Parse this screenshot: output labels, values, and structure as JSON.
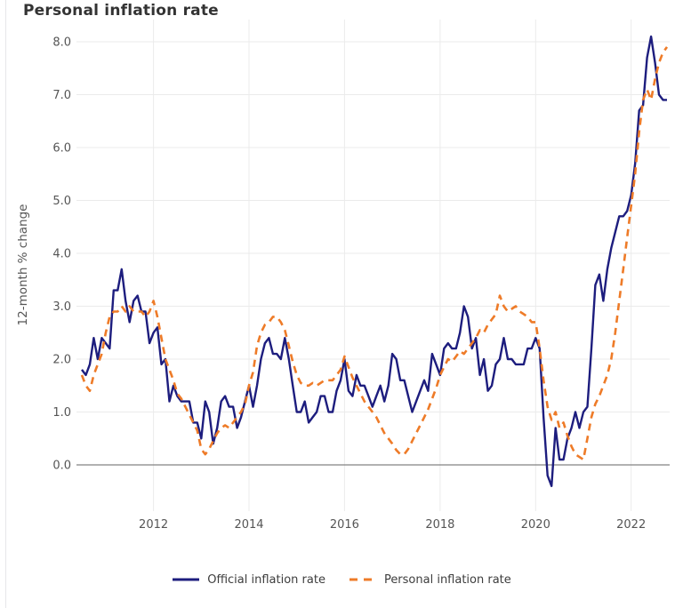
{
  "header": {
    "title": "Personal inflation rate"
  },
  "colors": {
    "official_line": "#1d1d7e",
    "personal_line": "#ee7b28",
    "gridline": "#ebebeb",
    "zero_line": "#828282",
    "tick_text": "#555555",
    "title_text": "#333333",
    "legend_text": "#3d3d3d",
    "background": "#ffffff"
  },
  "chart_data": {
    "type": "line",
    "title": "Personal inflation rate",
    "xlabel": "",
    "ylabel": "12-month % change",
    "frequency": "monthly",
    "x_range": {
      "start": "2010-07",
      "end": "2022-10"
    },
    "x_ticks": [
      2012,
      2014,
      2016,
      2018,
      2020,
      2022
    ],
    "y_ticks": [
      0,
      1,
      2,
      3,
      4,
      5,
      6,
      7,
      8
    ],
    "ylim": [
      -0.5,
      8.2
    ],
    "grid": true,
    "legend_position": "bottom-center",
    "series": [
      {
        "name": "Official inflation rate",
        "style": "solid",
        "color": "#1d1d7e",
        "values": [
          1.8,
          1.7,
          1.9,
          2.4,
          2,
          2.4,
          2.3,
          2.2,
          3.3,
          3.3,
          3.7,
          3.1,
          2.7,
          3.1,
          3.2,
          2.9,
          2.9,
          2.3,
          2.5,
          2.6,
          1.9,
          2,
          1.2,
          1.5,
          1.3,
          1.2,
          1.2,
          1.2,
          0.8,
          0.8,
          0.5,
          1.2,
          1,
          0.4,
          0.7,
          1.2,
          1.3,
          1.1,
          1.1,
          0.7,
          0.9,
          1.2,
          1.5,
          1.1,
          1.5,
          2,
          2.3,
          2.4,
          2.1,
          2.1,
          2,
          2.4,
          2,
          1.5,
          1,
          1,
          1.2,
          0.8,
          0.9,
          1,
          1.3,
          1.3,
          1,
          1,
          1.4,
          1.6,
          2,
          1.4,
          1.3,
          1.7,
          1.5,
          1.5,
          1.3,
          1.1,
          1.3,
          1.5,
          1.2,
          1.5,
          2.1,
          2,
          1.6,
          1.6,
          1.3,
          1,
          1.2,
          1.4,
          1.6,
          1.4,
          2.1,
          1.9,
          1.7,
          2.2,
          2.3,
          2.2,
          2.2,
          2.5,
          3,
          2.8,
          2.2,
          2.4,
          1.7,
          2,
          1.4,
          1.5,
          1.9,
          2,
          2.4,
          2,
          2,
          1.9,
          1.9,
          1.9,
          2.2,
          2.2,
          2.4,
          2.2,
          0.9,
          -0.2,
          -0.4,
          0.7,
          0.1,
          0.1,
          0.5,
          0.7,
          1,
          0.7,
          1,
          1.1,
          2.2,
          3.4,
          3.6,
          3.1,
          3.7,
          4.1,
          4.4,
          4.7,
          4.7,
          4.8,
          5.1,
          5.7,
          6.7,
          6.8,
          7.7,
          8.1,
          7.6,
          7,
          6.9,
          6.9
        ]
      },
      {
        "name": "Personal inflation rate",
        "style": "dashed",
        "color": "#ee7b28",
        "values": [
          1.7,
          1.5,
          1.4,
          1.7,
          1.9,
          2.1,
          2.5,
          2.8,
          2.9,
          2.9,
          3,
          2.9,
          3,
          2.9,
          2.9,
          2.9,
          2.8,
          2.9,
          3.1,
          2.8,
          2.4,
          2,
          1.8,
          1.6,
          1.35,
          1.25,
          1.1,
          0.95,
          0.8,
          0.65,
          0.3,
          0.2,
          0.3,
          0.45,
          0.6,
          0.7,
          0.75,
          0.7,
          0.8,
          0.9,
          1,
          1.15,
          1.5,
          1.75,
          2.25,
          2.5,
          2.65,
          2.7,
          2.8,
          2.8,
          2.7,
          2.55,
          2.25,
          1.95,
          1.7,
          1.55,
          1.5,
          1.5,
          1.55,
          1.5,
          1.55,
          1.6,
          1.6,
          1.6,
          1.7,
          1.8,
          2.05,
          1.85,
          1.65,
          1.5,
          1.35,
          1.2,
          1.1,
          1,
          0.9,
          0.75,
          0.6,
          0.5,
          0.4,
          0.28,
          0.2,
          0.2,
          0.3,
          0.45,
          0.6,
          0.75,
          0.9,
          1.05,
          1.25,
          1.45,
          1.7,
          1.85,
          2,
          1.95,
          2.05,
          2.15,
          2.1,
          2.2,
          2.3,
          2.4,
          2.55,
          2.5,
          2.65,
          2.75,
          2.85,
          3.2,
          3,
          2.9,
          2.95,
          3,
          2.9,
          2.85,
          2.8,
          2.7,
          2.7,
          2.2,
          1.6,
          1.1,
          0.85,
          1,
          0.7,
          0.8,
          0.55,
          0.35,
          0.2,
          0.15,
          0.1,
          0.5,
          0.9,
          1.15,
          1.3,
          1.5,
          1.7,
          2,
          2.5,
          3.1,
          3.7,
          4.3,
          4.9,
          5.5,
          6.3,
          6.9,
          7.1,
          6.9,
          7.3,
          7.6,
          7.8,
          7.9
        ]
      }
    ]
  }
}
